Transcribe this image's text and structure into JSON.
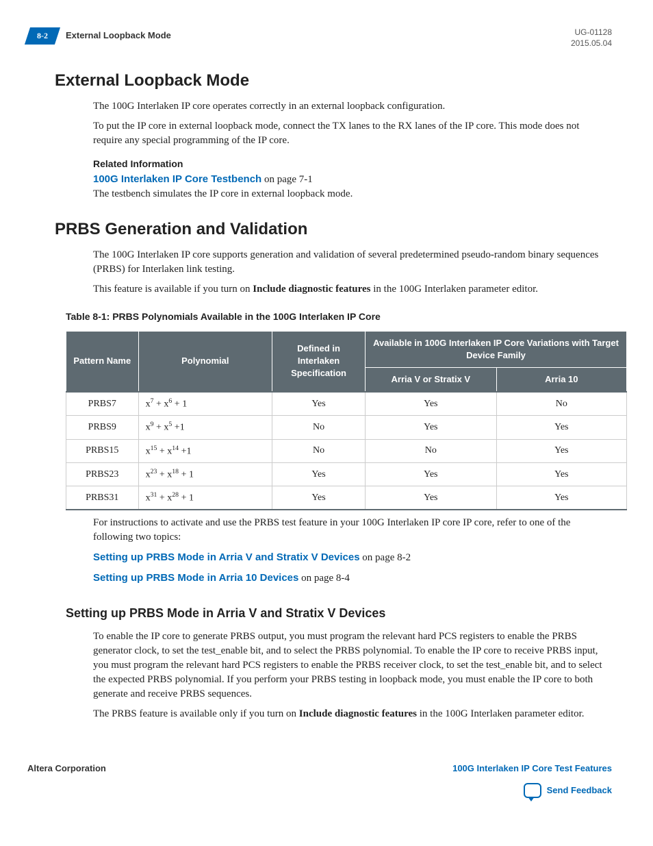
{
  "meta": {
    "page_num": "8-2",
    "running_title": "External Loopback Mode",
    "doc_id": "UG-01128",
    "date": "2015.05.04",
    "corp": "Altera Corporation",
    "doc_title": "100G Interlaken IP Core Test Features",
    "feedback": "Send Feedback"
  },
  "h1a": "External Loopback Mode",
  "p1": "The 100G Interlaken IP core operates correctly in an external loopback configuration.",
  "p2": "To put the IP core in external loopback mode, connect the TX lanes to the RX lanes of the IP core. This mode does not require any special programming of the IP core.",
  "rel_info": "Related Information",
  "link1_text": "100G Interlaken IP Core Testbench",
  "link1_suffix": " on page 7-1",
  "link1_desc": "The testbench simulates the IP core in external loopback mode.",
  "h1b": "PRBS Generation and Validation",
  "p3": "The 100G Interlaken IP core supports generation and validation of several predetermined pseudo-random binary sequences (PRBS) for Interlaken link testing.",
  "p4_pre": "This feature is available if you turn on ",
  "p4_bold": "Include diagnostic features",
  "p4_post": " in the 100G Interlaken parameter editor.",
  "table": {
    "caption": "Table 8-1: PRBS Polynomials Available in the 100G Interlaken IP Core",
    "header": {
      "col1": "Pattern Name",
      "col2": "Polynomial",
      "col3": "Defined in Interlaken Specification",
      "col4_top": "Available in 100G Interlaken IP Core Variations with Target Device Family",
      "col4a": "Arria V or Stratix V",
      "col4b": "Arria 10"
    },
    "rows": [
      {
        "name": "PRBS7",
        "poly_base": "x",
        "e1": "7",
        "op1": " + x",
        "e2": "6",
        "tail": " + 1",
        "def": "Yes",
        "a": "Yes",
        "b": "No"
      },
      {
        "name": "PRBS9",
        "poly_base": "x",
        "e1": "9",
        "op1": " + x",
        "e2": "5",
        "tail": " +1",
        "def": "No",
        "a": "Yes",
        "b": "Yes"
      },
      {
        "name": "PRBS15",
        "poly_base": "x",
        "e1": "15",
        "op1": " + x",
        "e2": "14",
        "tail": " +1",
        "def": "No",
        "a": "No",
        "b": "Yes"
      },
      {
        "name": "PRBS23",
        "poly_base": "x",
        "e1": "23",
        "op1": " + x",
        "e2": "18",
        "tail": " + 1",
        "def": "Yes",
        "a": "Yes",
        "b": "Yes"
      },
      {
        "name": "PRBS31",
        "poly_base": "x",
        "e1": "31",
        "op1": " + x",
        "e2": "28",
        "tail": " + 1",
        "def": "Yes",
        "a": "Yes",
        "b": "Yes"
      }
    ]
  },
  "p5": "For instructions to activate and use the PRBS test feature in your 100G Interlaken IP core IP core, refer to one of the following two topics:",
  "link2_text": "Setting up PRBS Mode in Arria V and Stratix V Devices",
  "link2_suffix": " on page 8-2",
  "link3_text": "Setting up PRBS Mode in Arria 10 Devices",
  "link3_suffix": " on page 8-4",
  "h2a": "Setting up PRBS Mode in Arria V and Stratix V Devices",
  "p6": "To enable the IP core to generate PRBS output, you must program the relevant hard PCS registers to enable the PRBS generator clock, to set the test_enable bit, and to select the PRBS polynomial. To enable the IP core to receive PRBS input, you must program the relevant hard PCS registers to enable the PRBS receiver clock, to set the test_enable bit, and to select the expected PRBS polynomial. If you perform your PRBS testing in loopback mode, you must enable the IP core to both generate and receive PRBS sequences.",
  "p7_pre": "The PRBS feature is available only if you turn on ",
  "p7_bold": "Include diagnostic features",
  "p7_post": " in the 100G Interlaken parameter editor.",
  "colors": {
    "brand": "#0169b6",
    "th_bg": "#5e6a71"
  }
}
